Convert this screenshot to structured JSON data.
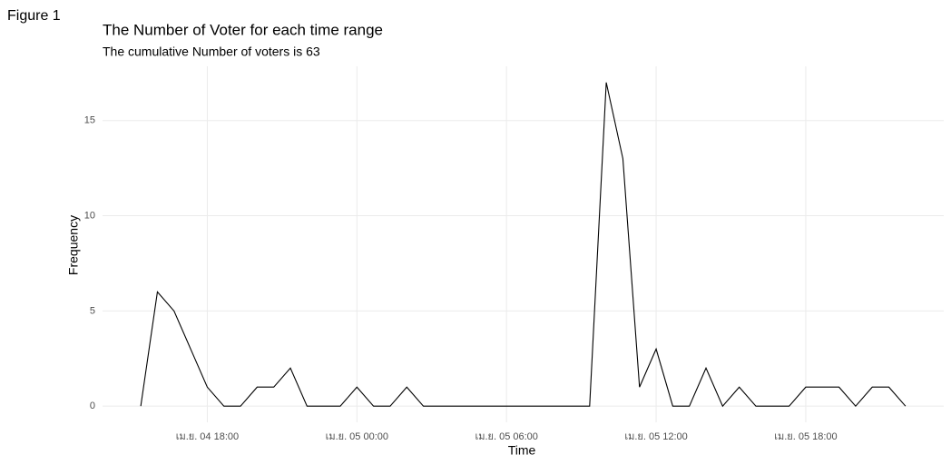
{
  "window_title": "Figure 1",
  "chart_data": {
    "type": "line",
    "title": "The Number of Voter for each time range",
    "subtitle": "The cumulative Number of voters is 63",
    "x_label": "Time",
    "y_label": "Frequency",
    "x": [
      "เม.ย. 04 15:20",
      "เม.ย. 04 16:00",
      "เม.ย. 04 16:40",
      "เม.ย. 04 17:20",
      "เม.ย. 04 18:00",
      "เม.ย. 04 18:40",
      "เม.ย. 04 19:20",
      "เม.ย. 04 20:00",
      "เม.ย. 04 20:40",
      "เม.ย. 04 21:20",
      "เม.ย. 04 22:00",
      "เม.ย. 04 22:40",
      "เม.ย. 04 23:20",
      "เม.ย. 05 00:00",
      "เม.ย. 05 00:40",
      "เม.ย. 05 01:20",
      "เม.ย. 05 02:00",
      "เม.ย. 05 02:40",
      "เม.ย. 05 03:20",
      "เม.ย. 05 04:00",
      "เม.ย. 05 04:40",
      "เม.ย. 05 05:20",
      "เม.ย. 05 06:00",
      "เม.ย. 05 06:40",
      "เม.ย. 05 07:20",
      "เม.ย. 05 08:00",
      "เม.ย. 05 08:40",
      "เม.ย. 05 09:20",
      "เม.ย. 05 10:00",
      "เม.ย. 05 10:40",
      "เม.ย. 05 11:20",
      "เม.ย. 05 12:00",
      "เม.ย. 05 12:40",
      "เม.ย. 05 13:20",
      "เม.ย. 05 14:00",
      "เม.ย. 05 14:40",
      "เม.ย. 05 15:20",
      "เม.ย. 05 16:00",
      "เม.ย. 05 16:40",
      "เม.ย. 05 17:20",
      "เม.ย. 05 18:00",
      "เม.ย. 05 18:40",
      "เม.ย. 05 19:20",
      "เม.ย. 05 20:00",
      "เม.ย. 05 20:40",
      "เม.ย. 05 21:20",
      "เม.ย. 05 22:00"
    ],
    "values": [
      0,
      6,
      5,
      3,
      1,
      0,
      0,
      1,
      1,
      2,
      0,
      0,
      0,
      1,
      0,
      0,
      1,
      0,
      0,
      0,
      0,
      0,
      0,
      0,
      0,
      0,
      0,
      0,
      17,
      13,
      1,
      3,
      0,
      0,
      2,
      0,
      1,
      0,
      0,
      0,
      1,
      1,
      1,
      0,
      1,
      1,
      0
    ],
    "color": "#000000",
    "xlim": [
      "เม.ย. 04 13:48",
      "เม.ย. 05 23:32"
    ],
    "xticks": [
      "เม.ย. 04 18:00",
      "เม.ย. 05 00:00",
      "เม.ย. 05 06:00",
      "เม.ย. 05 12:00",
      "เม.ย. 05 18:00"
    ],
    "ylim": [
      -0.85,
      17.85
    ],
    "yticks": [
      0,
      5,
      10,
      15
    ],
    "grid": true
  }
}
